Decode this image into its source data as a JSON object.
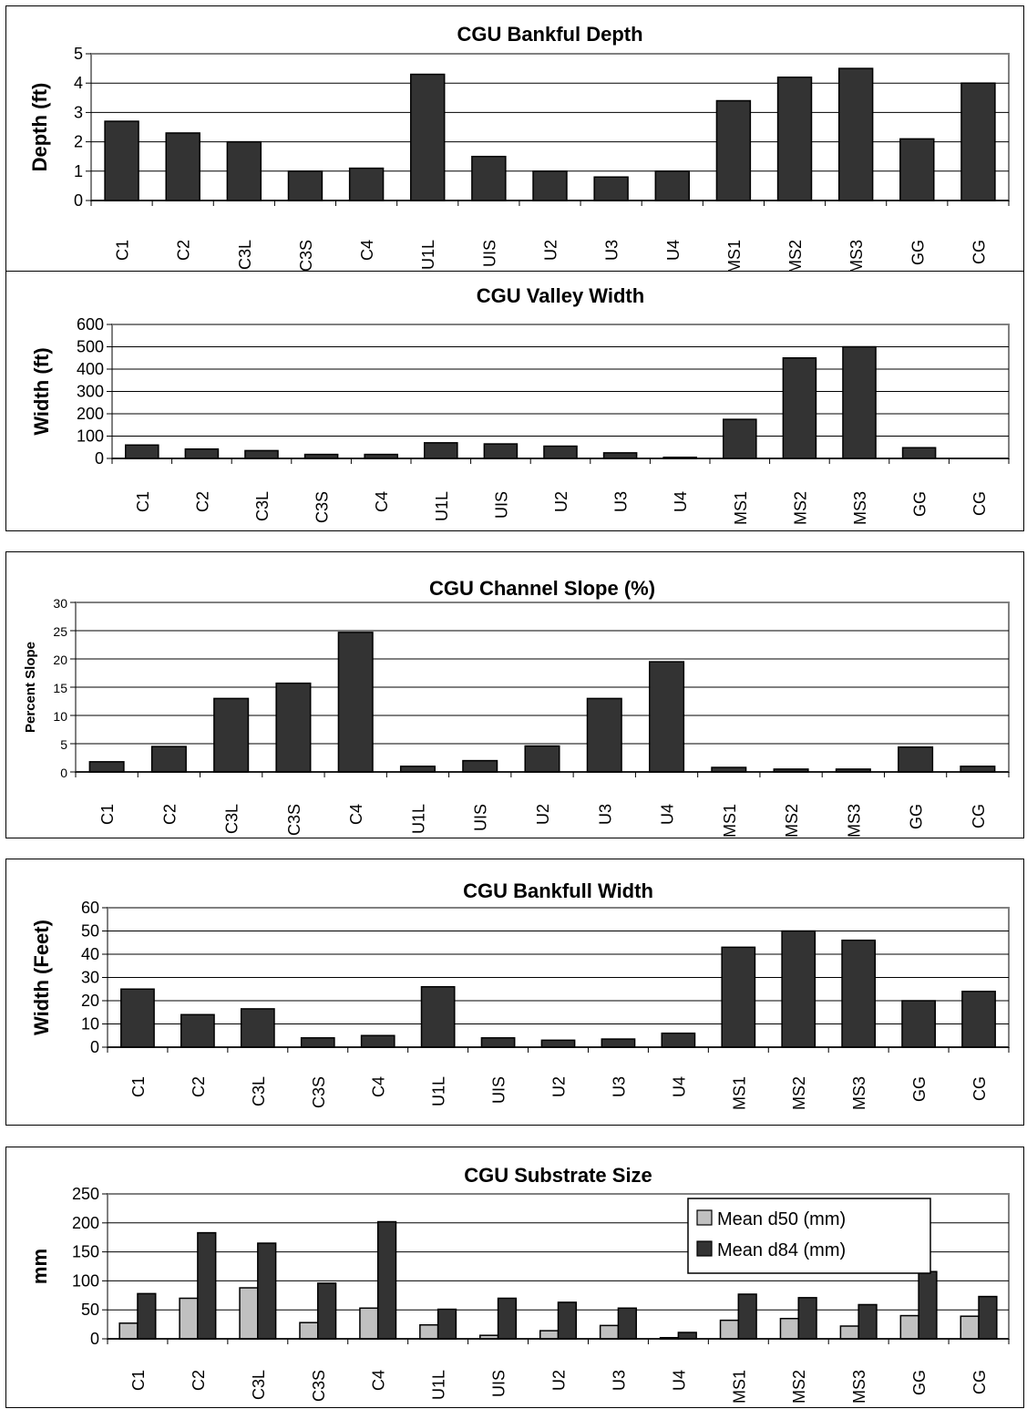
{
  "chart_data": [
    {
      "type": "bar",
      "title": "CGU Bankful Depth",
      "ylabel": "Depth (ft)",
      "ylim": [
        0,
        5
      ],
      "yticks": [
        0,
        1,
        2,
        3,
        4,
        5
      ],
      "grid": true,
      "categories": [
        "C1",
        "C2",
        "C3L",
        "C3S",
        "C4",
        "U1L",
        "UIS",
        "U2",
        "U3",
        "U4",
        "MS1",
        "MS2",
        "MS3",
        "GG",
        "CG"
      ],
      "series": [
        {
          "values": [
            2.7,
            2.3,
            2.0,
            1.0,
            1.1,
            4.3,
            1.5,
            1.0,
            0.8,
            1.0,
            3.4,
            4.2,
            4.5,
            2.1,
            4.0
          ],
          "color": "#333333"
        }
      ]
    },
    {
      "type": "bar",
      "title": "CGU Valley Width",
      "ylabel": "Width (ft)",
      "ylim": [
        0,
        600
      ],
      "yticks": [
        0,
        100,
        200,
        300,
        400,
        500,
        600
      ],
      "grid": true,
      "categories": [
        "C1",
        "C2",
        "C3L",
        "C3S",
        "C4",
        "U1L",
        "UIS",
        "U2",
        "U3",
        "U4",
        "MS1",
        "MS2",
        "MS3",
        "GG",
        "CG"
      ],
      "series": [
        {
          "values": [
            60,
            42,
            35,
            18,
            18,
            70,
            65,
            55,
            25,
            5,
            175,
            450,
            500,
            48,
            0
          ],
          "color": "#333333"
        }
      ]
    },
    {
      "type": "bar",
      "title": "CGU Channel Slope (%)",
      "ylabel": "Percent Slope",
      "ylim": [
        0,
        30
      ],
      "yticks": [
        0,
        5,
        10,
        15,
        20,
        25,
        30
      ],
      "grid": true,
      "categories": [
        "C1",
        "C2",
        "C3L",
        "C3S",
        "C4",
        "U1L",
        "UIS",
        "U2",
        "U3",
        "U4",
        "MS1",
        "MS2",
        "MS3",
        "GG",
        "CG"
      ],
      "series": [
        {
          "values": [
            1.8,
            4.5,
            13.0,
            15.7,
            24.7,
            1.0,
            2.0,
            4.6,
            13.0,
            19.5,
            0.8,
            0.5,
            0.5,
            4.4,
            1.0
          ],
          "color": "#333333"
        }
      ]
    },
    {
      "type": "bar",
      "title": "CGU Bankfull Width",
      "ylabel": "Width (Feet)",
      "ylim": [
        0,
        60
      ],
      "yticks": [
        0,
        10,
        20,
        30,
        40,
        50,
        60
      ],
      "grid": true,
      "categories": [
        "C1",
        "C2",
        "C3L",
        "C3S",
        "C4",
        "U1L",
        "UIS",
        "U2",
        "U3",
        "U4",
        "MS1",
        "MS2",
        "MS3",
        "GG",
        "CG"
      ],
      "series": [
        {
          "values": [
            25,
            14,
            16.5,
            4,
            5,
            26,
            4,
            3,
            3.5,
            6,
            43,
            50,
            46,
            20,
            24
          ],
          "color": "#333333"
        }
      ]
    },
    {
      "type": "bar",
      "title": "CGU Substrate Size",
      "ylabel": "mm",
      "ylim": [
        0,
        250
      ],
      "yticks": [
        0,
        50,
        100,
        150,
        200,
        250
      ],
      "grid": true,
      "legend_position": "top-right",
      "categories": [
        "C1",
        "C2",
        "C3L",
        "C3S",
        "C4",
        "U1L",
        "UIS",
        "U2",
        "U3",
        "U4",
        "MS1",
        "MS2",
        "MS3",
        "GG",
        "CG"
      ],
      "series": [
        {
          "name": "Mean d50 (mm)",
          "values": [
            27,
            70,
            88,
            28,
            53,
            24,
            6,
            14,
            23,
            2,
            32,
            35,
            22,
            40,
            39
          ],
          "color": "#c0c0c0"
        },
        {
          "name": "Mean d84 (mm)",
          "values": [
            78,
            183,
            165,
            96,
            202,
            51,
            70,
            63,
            53,
            11,
            77,
            71,
            59,
            116,
            73
          ],
          "color": "#333333"
        }
      ]
    }
  ]
}
